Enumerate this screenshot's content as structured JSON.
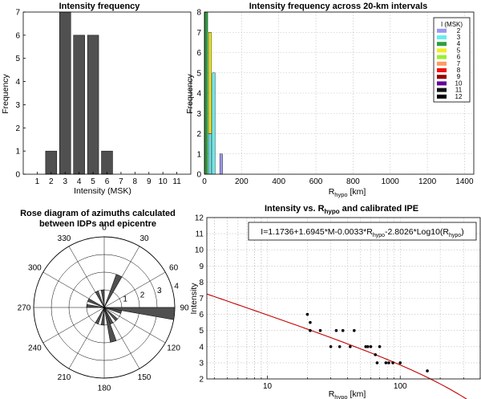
{
  "colors": {
    "bar_gray": "#505050",
    "ipe_line": "#c00000",
    "rose_fill": "#505050",
    "points": "#000000"
  },
  "chart_data": [
    {
      "type": "bar",
      "title": "Intensity frequency",
      "xlabel": "Intensity (MSK)",
      "ylabel": "Frequency",
      "categories": [
        1,
        2,
        3,
        4,
        5,
        6,
        7,
        8,
        9,
        10,
        11
      ],
      "tick_labels": [
        "1",
        "2",
        "3",
        "4",
        "5",
        "6",
        "7",
        "8",
        "9",
        "10",
        "11"
      ],
      "values": [
        0,
        1,
        7,
        6,
        6,
        1,
        0,
        0,
        0,
        0,
        0
      ],
      "ylim": [
        0,
        7
      ],
      "yticks": [
        "0",
        "1",
        "2",
        "3",
        "4",
        "5",
        "6",
        "7"
      ]
    },
    {
      "type": "bar",
      "stacked": true,
      "title": "Intensity frequency across 20-km intervals",
      "xlabel_main": "R",
      "xlabel_sub": "hypo",
      "xlabel_unit": " [km]",
      "ylabel": "Frequency",
      "xlim": [
        0,
        1450
      ],
      "ylim": [
        0,
        8
      ],
      "xticks": [
        "0",
        "200",
        "400",
        "600",
        "800",
        "1000",
        "1200",
        "1400"
      ],
      "yticks": [
        "0",
        "1",
        "2",
        "3",
        "4",
        "5",
        "6",
        "7",
        "8"
      ],
      "bin_width_km": 20,
      "bins": [
        {
          "x0": 0,
          "counts": {
            "4": 8
          }
        },
        {
          "x0": 20,
          "counts": {
            "3": 2,
            "5": 5
          }
        },
        {
          "x0": 40,
          "counts": {
            "3": 5
          }
        },
        {
          "x0": 80,
          "counts": {
            "2": 1
          }
        }
      ],
      "legend": {
        "title": "I (MSK)",
        "placement": "top-right",
        "entries": [
          {
            "label": "2",
            "color": "#9999ee"
          },
          {
            "label": "3",
            "color": "#66eeee"
          },
          {
            "label": "4",
            "color": "#2e9e3e"
          },
          {
            "label": "5",
            "color": "#eeee22"
          },
          {
            "label": "6",
            "color": "#99ee33"
          },
          {
            "label": "7",
            "color": "#ff9a66"
          },
          {
            "label": "8",
            "color": "#ee1111"
          },
          {
            "label": "9",
            "color": "#990000"
          },
          {
            "label": "10",
            "color": "#660099"
          },
          {
            "label": "11",
            "color": "#111111"
          },
          {
            "label": "12",
            "color": "#000000"
          }
        ]
      }
    },
    {
      "type": "rose",
      "title_line1": "Rose diagram of azimuths calculated",
      "title_line2": "between  IDPs and epicentre",
      "angle_labels": [
        {
          "deg": 0,
          "text": "0"
        },
        {
          "deg": 30,
          "text": "30"
        },
        {
          "deg": 60,
          "text": "60"
        },
        {
          "deg": 90,
          "text": "90"
        },
        {
          "deg": 120,
          "text": "120"
        },
        {
          "deg": 150,
          "text": "150"
        },
        {
          "deg": 180,
          "text": "180"
        },
        {
          "deg": 210,
          "text": "210"
        },
        {
          "deg": 240,
          "text": "240"
        },
        {
          "deg": 270,
          "text": "270"
        },
        {
          "deg": 300,
          "text": "300"
        },
        {
          "deg": 330,
          "text": "330"
        }
      ],
      "rmax": 4,
      "radial_ticks": [
        "1",
        "2",
        "3",
        "4"
      ],
      "bin_width_deg": 10,
      "petals": [
        {
          "start": 20,
          "value": 2
        },
        {
          "start": 90,
          "value": 4
        },
        {
          "start": 100,
          "value": 1
        },
        {
          "start": 130,
          "value": 1
        },
        {
          "start": 150,
          "value": 1
        },
        {
          "start": 160,
          "value": 2
        },
        {
          "start": 180,
          "value": 1
        },
        {
          "start": 200,
          "value": 1
        },
        {
          "start": 270,
          "value": 1
        },
        {
          "start": 290,
          "value": 1
        },
        {
          "start": 330,
          "value": 1
        },
        {
          "start": 350,
          "value": 1
        }
      ]
    },
    {
      "type": "scatter",
      "title_main": "Intensity vs. R",
      "title_sub": "hypo",
      "title_tail": " and calibrated IPE",
      "xscale": "log",
      "xlim": [
        3.5,
        400
      ],
      "ylim": [
        2,
        12
      ],
      "xticks": [
        {
          "v": 10,
          "label": "10"
        },
        {
          "v": 100,
          "label": "100"
        }
      ],
      "yticks": [
        "2",
        "3",
        "4",
        "5",
        "6",
        "7",
        "8",
        "9",
        "10",
        "11",
        "12"
      ],
      "xlabel_main": "R",
      "xlabel_sub": "hypo",
      "xlabel_unit": " [km]",
      "ylabel": "Intensity",
      "equation": {
        "part1": "I=1.1736+1.6945*M-0.0033*R",
        "sub1": "hypo",
        "part2": "-2.8026*Log10(R",
        "sub2": "hypo",
        "part3": ")"
      },
      "ipe_curve": {
        "a": 1.1736,
        "b": 1.6945,
        "c": -0.0033,
        "d": -2.8026,
        "M": 4.5
      },
      "points": [
        {
          "x": 20,
          "y": 6
        },
        {
          "x": 21,
          "y": 5
        },
        {
          "x": 21,
          "y": 5.5
        },
        {
          "x": 25,
          "y": 5
        },
        {
          "x": 30,
          "y": 4
        },
        {
          "x": 33,
          "y": 5
        },
        {
          "x": 35,
          "y": 4
        },
        {
          "x": 37,
          "y": 5
        },
        {
          "x": 42,
          "y": 4
        },
        {
          "x": 45,
          "y": 5
        },
        {
          "x": 55,
          "y": 4
        },
        {
          "x": 57,
          "y": 4
        },
        {
          "x": 60,
          "y": 4
        },
        {
          "x": 65,
          "y": 3.5
        },
        {
          "x": 67,
          "y": 3
        },
        {
          "x": 70,
          "y": 4
        },
        {
          "x": 78,
          "y": 3
        },
        {
          "x": 82,
          "y": 3
        },
        {
          "x": 88,
          "y": 3
        },
        {
          "x": 100,
          "y": 3
        },
        {
          "x": 160,
          "y": 2.5
        }
      ]
    }
  ]
}
